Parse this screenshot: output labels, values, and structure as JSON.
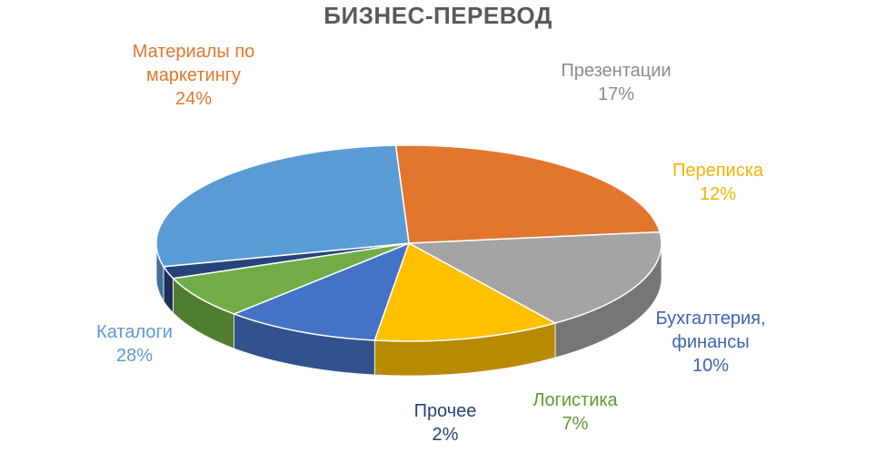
{
  "chart_data": {
    "type": "pie",
    "three_d": true,
    "title": "БИЗНЕС-ПЕРЕВОД",
    "legend": "none (data labels)",
    "slices": [
      {
        "label_lines": [
          "Материалы по",
          "маркетингу"
        ],
        "value": 24,
        "value_label": "24%",
        "color": "#E2762E",
        "text_color": "#E2762E"
      },
      {
        "label_lines": [
          "Презентации"
        ],
        "value": 17,
        "value_label": "17%",
        "color": "#A4A4A4",
        "text_color": "#8C8C8C"
      },
      {
        "label_lines": [
          "Переписка"
        ],
        "value": 12,
        "value_label": "12%",
        "color": "#FFC000",
        "text_color": "#F0B400"
      },
      {
        "label_lines": [
          "Бухгалтерия,",
          "финансы"
        ],
        "value": 10,
        "value_label": "10%",
        "color": "#4472C4",
        "text_color": "#3B64B0"
      },
      {
        "label_lines": [
          "Логистика"
        ],
        "value": 7,
        "value_label": "7%",
        "color": "#70AD47",
        "text_color": "#5E9A35"
      },
      {
        "label_lines": [
          "Прочее"
        ],
        "value": 2,
        "value_label": "2%",
        "color": "#264478",
        "text_color": "#264478"
      },
      {
        "label_lines": [
          "Каталоги"
        ],
        "value": 28,
        "value_label": "28%",
        "color": "#5B9BD5",
        "text_color": "#5B9BD5"
      }
    ]
  }
}
